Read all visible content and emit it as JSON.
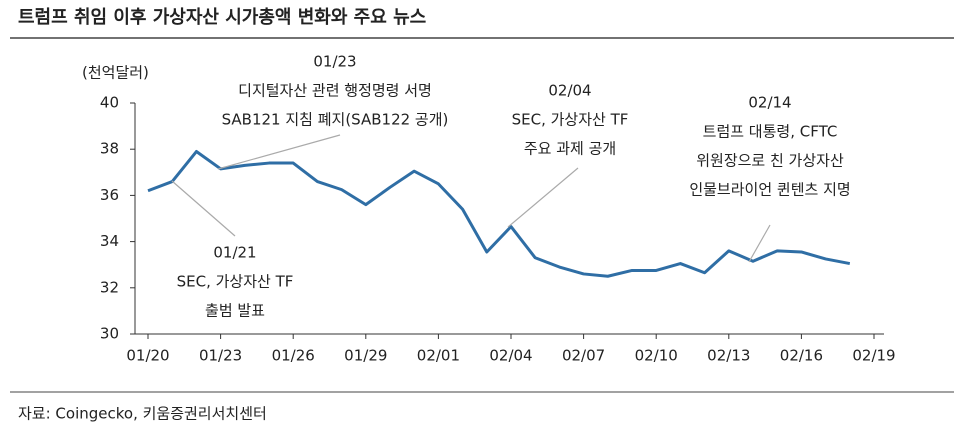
{
  "chart_data": {
    "type": "line",
    "title": "트럼프 취임 이후 가상자산 시가총액 변화와 주요 뉴스",
    "y_unit": "(천억달러)",
    "source": "자료: Coingecko, 키움증권리서치센터",
    "categories": [
      "01/20",
      null,
      null,
      "01/23",
      null,
      null,
      "01/26",
      null,
      null,
      "01/29",
      null,
      null,
      "02/01",
      null,
      null,
      "02/04",
      null,
      null,
      "02/07",
      null,
      null,
      "02/10",
      null,
      null,
      "02/13",
      null,
      null,
      "02/16",
      null,
      null,
      "02/19"
    ],
    "values": [
      36.2,
      36.6,
      37.9,
      37.15,
      37.3,
      37.4,
      37.4,
      36.6,
      36.25,
      35.6,
      36.35,
      37.05,
      36.5,
      35.4,
      33.55,
      34.65,
      33.3,
      32.9,
      32.6,
      32.5,
      32.75,
      32.75,
      33.05,
      32.65,
      33.6,
      33.15,
      33.6,
      33.55,
      33.25,
      33.05,
      null
    ],
    "color": "#2f6ea5",
    "ylim": [
      30,
      40
    ],
    "yticks": [
      30,
      32,
      34,
      36,
      38,
      40
    ],
    "annotations": [
      {
        "lines": [
          "01/23",
          "디지털자산 관련 행정명령 서명",
          "SAB121 지침 폐지(SAB122 공개)"
        ]
      },
      {
        "lines": [
          "02/04",
          "SEC, 가상자산 TF",
          "주요 과제 공개"
        ]
      },
      {
        "lines": [
          "02/14",
          "트럼프 대통령, CFTC",
          "위원장으로 친 가상자산",
          "인물브라이언 퀸텐츠 지명"
        ]
      },
      {
        "lines": [
          "01/21",
          "SEC, 가상자산 TF",
          "출범 발표"
        ]
      }
    ]
  }
}
